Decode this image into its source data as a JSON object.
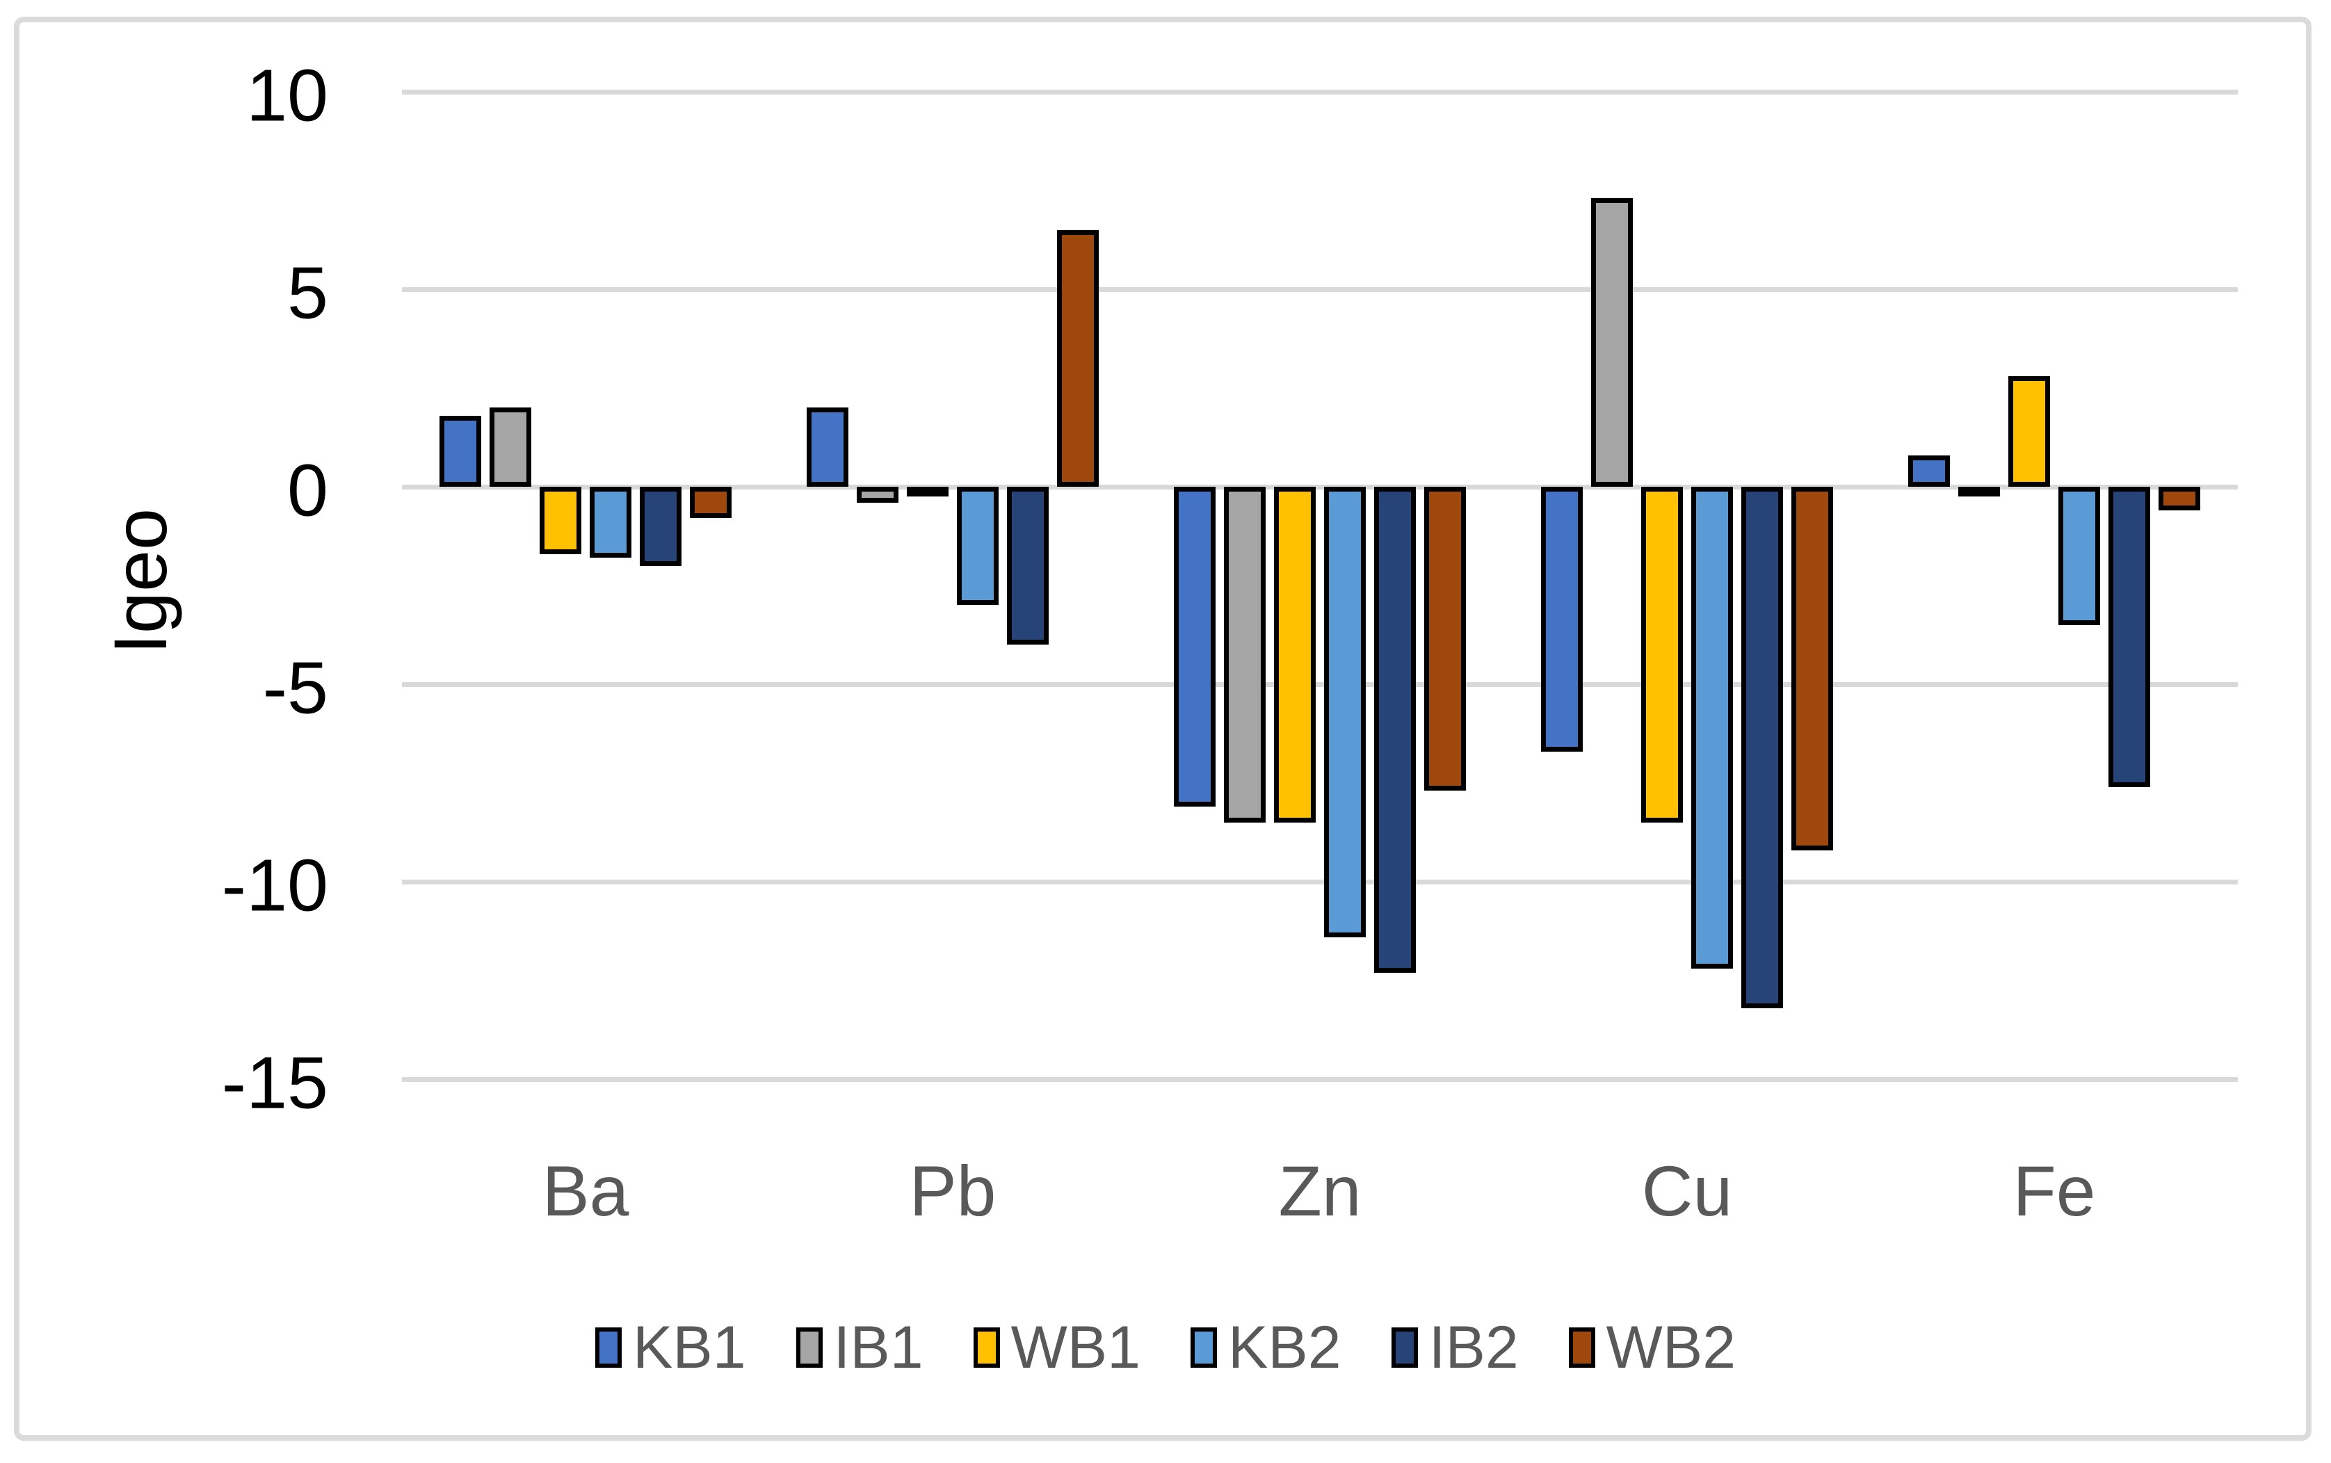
{
  "chart": {
    "y_axis_title": "Igeo"
  },
  "chart_data": {
    "type": "bar",
    "title": "",
    "xlabel": "",
    "ylabel": "Igeo",
    "categories": [
      "Ba",
      "Pb",
      "Zn",
      "Cu",
      "Fe"
    ],
    "series": [
      {
        "name": "KB1",
        "color": "#4472C4",
        "values": [
          1.8,
          2.0,
          -8.1,
          -6.7,
          0.8
        ]
      },
      {
        "name": "IB1",
        "color": "#A5A5A5",
        "values": [
          2.0,
          -0.4,
          -8.5,
          7.3,
          -0.25
        ]
      },
      {
        "name": "WB1",
        "color": "#FFC000",
        "values": [
          -1.7,
          -0.1,
          -8.5,
          -8.5,
          2.8
        ]
      },
      {
        "name": "KB2",
        "color": "#5B9BD5",
        "values": [
          -1.8,
          -3.0,
          -11.4,
          -12.2,
          -3.5
        ]
      },
      {
        "name": "IB2",
        "color": "#264478",
        "values": [
          -2.0,
          -4.0,
          -12.3,
          -13.2,
          -7.6
        ]
      },
      {
        "name": "WB2",
        "color": "#9E480E",
        "values": [
          -0.8,
          6.5,
          -7.7,
          -9.2,
          -0.6
        ]
      }
    ],
    "ylim": [
      -15,
      10
    ],
    "yticks": [
      10,
      5,
      0,
      -5,
      -10,
      -15
    ],
    "grid": true,
    "legend_position": "bottom",
    "styles": {
      "bar_outline": "#000000",
      "gridline": "#D9D9D9",
      "frame_border": "#DBDBDB",
      "tick_label": "#000000",
      "category_label": "#595959",
      "legend_label": "#595959",
      "background": "#FFFFFF"
    }
  }
}
